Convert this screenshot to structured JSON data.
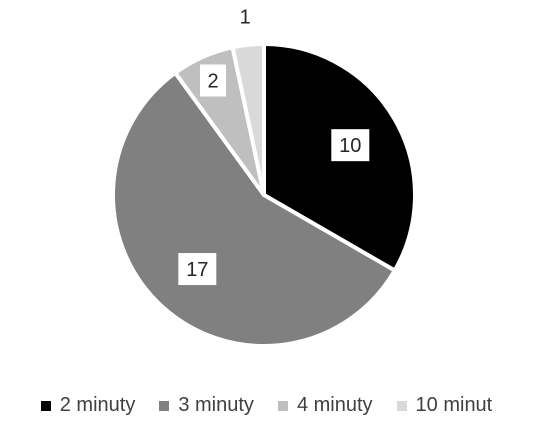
{
  "chart_data": {
    "type": "pie",
    "title": "",
    "categories": [
      "2 minuty",
      "3 minuty",
      "4 minuty",
      "10 minut"
    ],
    "values": [
      10,
      17,
      2,
      1
    ],
    "colors": [
      "#000000",
      "#808080",
      "#bfbfbf",
      "#d9d9d9"
    ],
    "data_labels": [
      "10",
      "17",
      "2",
      "1"
    ],
    "legend_position": "bottom",
    "start_angle": "12 o'clock",
    "direction": "clockwise"
  }
}
